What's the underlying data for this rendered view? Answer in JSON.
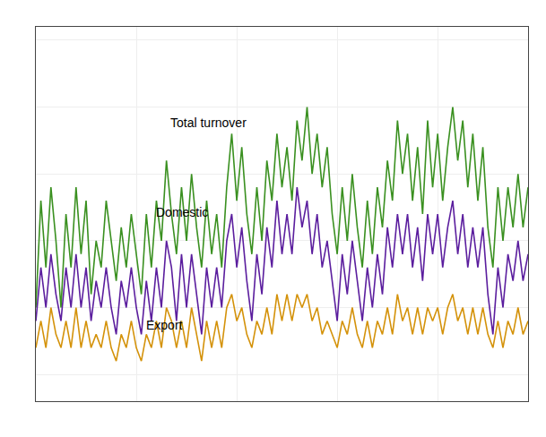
{
  "chart_data": {
    "type": "line",
    "series": [
      {
        "name": "Total turnover",
        "color": "#3a9020",
        "values": [
          5,
          13,
          8,
          14,
          10,
          5,
          12,
          8,
          14,
          9,
          13,
          6,
          10,
          8,
          13,
          10,
          7,
          11,
          8,
          12,
          9,
          6,
          12,
          8,
          13,
          10,
          16,
          12,
          9,
          14,
          10,
          15,
          11,
          8,
          13,
          9,
          12,
          8,
          14,
          18,
          13,
          17,
          12,
          9,
          14,
          10,
          16,
          13,
          18,
          14,
          17,
          13,
          19,
          16,
          20,
          15,
          18,
          14,
          17,
          12,
          9,
          14,
          10,
          15,
          11,
          8,
          13,
          9,
          14,
          11,
          16,
          13,
          19,
          15,
          18,
          13,
          17,
          12,
          19,
          14,
          18,
          13,
          17,
          20,
          16,
          19,
          14,
          18,
          13,
          17,
          11,
          8,
          14,
          10,
          14,
          11,
          15,
          11,
          14
        ]
      },
      {
        "name": "Domestic",
        "color": "#5b1e9e",
        "values": [
          4,
          8,
          5,
          9,
          6,
          4,
          8,
          5,
          9,
          5,
          8,
          4,
          7,
          5,
          8,
          5,
          3,
          7,
          5,
          8,
          5,
          3,
          7,
          4,
          8,
          5,
          10,
          8,
          4,
          9,
          5,
          9,
          6,
          3,
          8,
          5,
          8,
          5,
          10,
          12,
          8,
          11,
          7,
          4,
          9,
          6,
          11,
          8,
          13,
          9,
          12,
          9,
          14,
          11,
          13,
          9,
          12,
          8,
          10,
          7,
          4,
          9,
          6,
          10,
          7,
          4,
          8,
          5,
          9,
          6,
          11,
          8,
          12,
          9,
          12,
          8,
          11,
          7,
          12,
          9,
          12,
          8,
          11,
          13,
          9,
          12,
          8,
          11,
          8,
          11,
          6,
          3,
          8,
          5,
          9,
          7,
          10,
          7,
          9
        ]
      },
      {
        "name": "Export",
        "color": "#d4920a",
        "values": [
          2,
          4,
          2,
          5,
          3,
          2,
          4,
          2,
          5,
          2,
          4,
          2,
          3,
          2,
          4,
          2,
          1,
          3,
          2,
          4,
          2,
          1,
          3,
          2,
          4,
          2,
          5,
          4,
          2,
          4,
          2,
          5,
          3,
          1,
          4,
          2,
          4,
          2,
          5,
          6,
          4,
          5,
          3,
          2,
          4,
          3,
          5,
          3,
          6,
          4,
          6,
          4,
          6,
          5,
          6,
          4,
          5,
          3,
          4,
          3,
          2,
          4,
          3,
          5,
          3,
          2,
          4,
          2,
          4,
          3,
          5,
          3,
          6,
          4,
          5,
          3,
          5,
          3,
          5,
          4,
          5,
          3,
          5,
          6,
          4,
          5,
          3,
          5,
          3,
          5,
          3,
          2,
          4,
          2,
          4,
          3,
          5,
          3,
          4
        ]
      }
    ],
    "xlim": [
      0,
      98
    ],
    "xticks": [
      0,
      20,
      40,
      60,
      80
    ],
    "ylim": [
      -2,
      26
    ],
    "yticks": [
      0,
      5,
      10,
      15,
      20,
      25
    ],
    "grid": true,
    "tick_labels": false
  }
}
